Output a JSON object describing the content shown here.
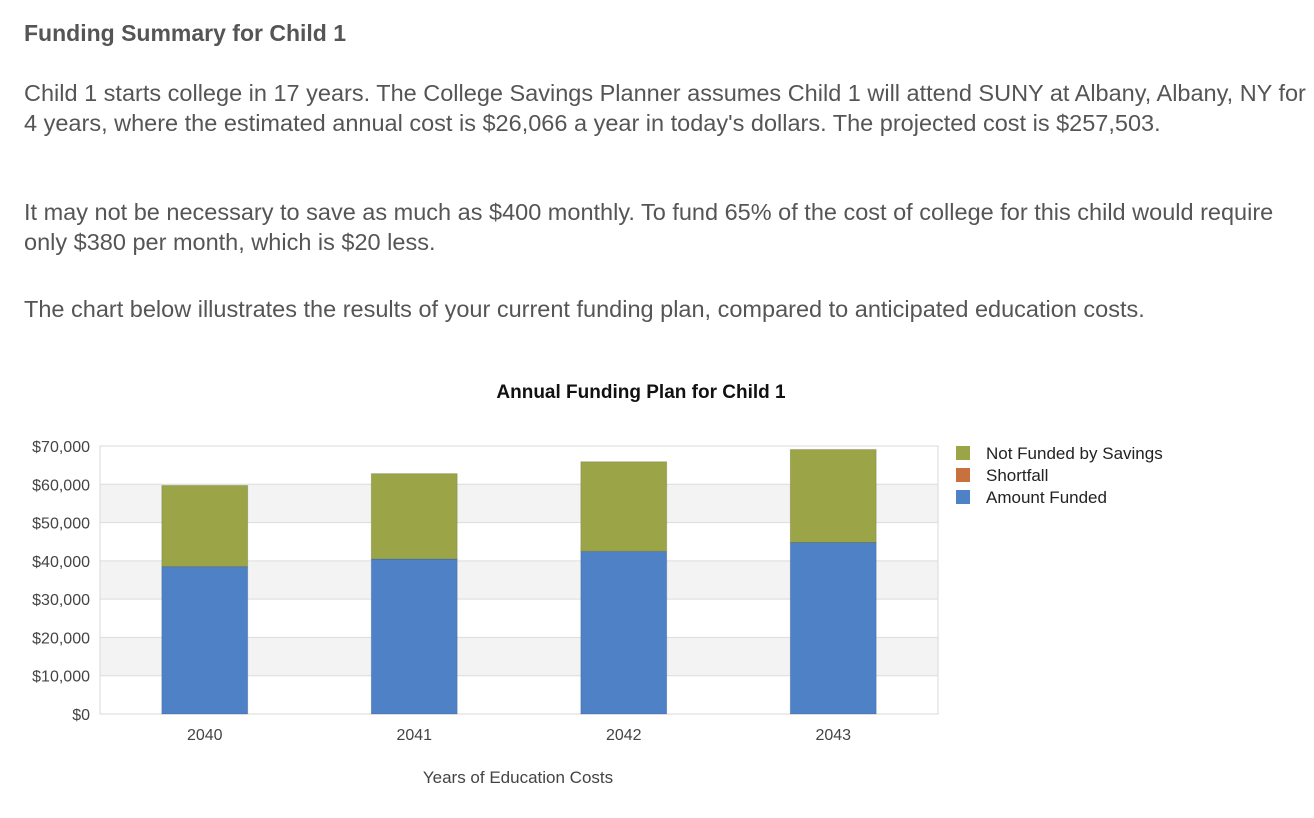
{
  "summary": {
    "title": "Funding Summary for Child 1",
    "paragraph_1": "Child 1 starts college in 17 years.  The College Savings Planner assumes Child 1 will attend SUNY at Albany, Albany, NY for 4 years, where the estimated annual cost is $26,066 a year in today's dollars. The projected cost is $257,503.",
    "paragraph_2": "It may not be necessary to save as much as $400 monthly.  To fund 65% of the cost of college for this child would require only $380 per month, which is $20 less.",
    "paragraph_3": "The chart below illustrates the results of your current funding plan, compared to anticipated education costs."
  },
  "chart_data": {
    "type": "bar",
    "stacked": true,
    "title": "Annual Funding Plan for Child 1",
    "xlabel": "Years of Education Costs",
    "ylabel": "",
    "categories": [
      "2040",
      "2041",
      "2042",
      "2043"
    ],
    "ylim": [
      0,
      70000
    ],
    "yticks": [
      0,
      10000,
      20000,
      30000,
      40000,
      50000,
      60000,
      70000
    ],
    "ytick_labels": [
      "$0",
      "$10,000",
      "$20,000",
      "$30,000",
      "$40,000",
      "$50,000",
      "$60,000",
      "$70,000"
    ],
    "grid": true,
    "legend_position": "right",
    "series": [
      {
        "name": "Amount Funded",
        "color": "#4f81c7",
        "values": [
          38500,
          40500,
          42500,
          44800
        ]
      },
      {
        "name": "Shortfall",
        "color": "#c8703e",
        "values": [
          0,
          0,
          0,
          0
        ]
      },
      {
        "name": "Not Funded by Savings",
        "color": "#9ca448",
        "values": [
          21200,
          22300,
          23400,
          24300
        ]
      }
    ],
    "legend_order": [
      "Not Funded by Savings",
      "Shortfall",
      "Amount Funded"
    ]
  }
}
